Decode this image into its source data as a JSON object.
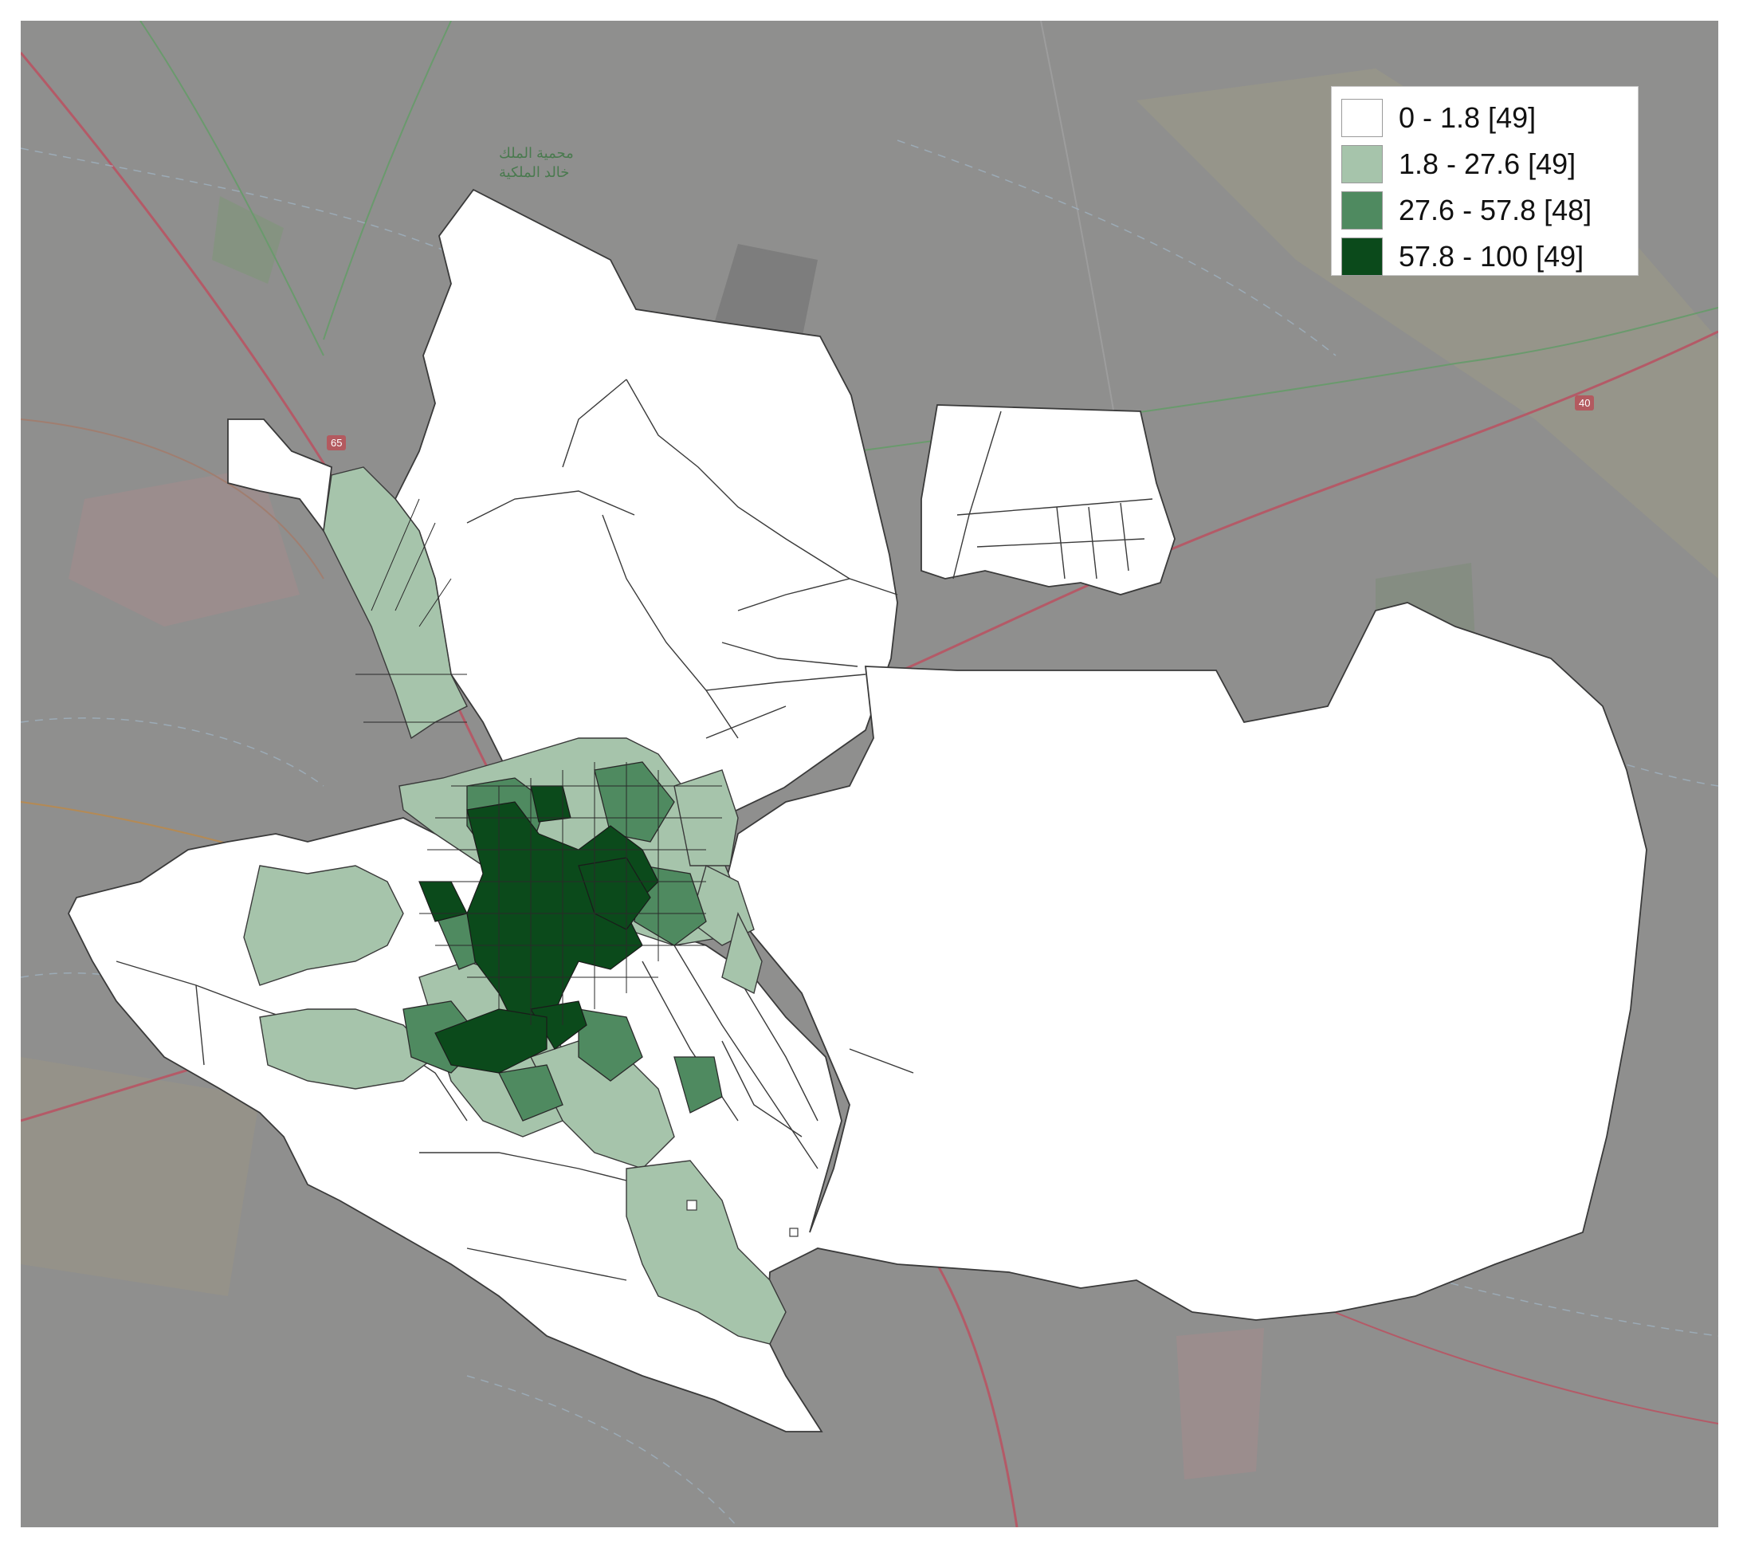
{
  "legend": {
    "classes": [
      {
        "label": "0 - 1.8 [49]",
        "color": "#ffffff"
      },
      {
        "label": "1.8 - 27.6 [49]",
        "color": "#a6c4ab"
      },
      {
        "label": "27.6 - 57.8 [48]",
        "color": "#4f8a60"
      },
      {
        "label": "57.8 - 100 [49]",
        "color": "#0b4a1b"
      }
    ]
  },
  "basemap": {
    "labels": {
      "reserve_line1": "محمية الملك",
      "reserve_line2": "خالد الملكية",
      "road_65": "65",
      "road_40": "40"
    }
  }
}
